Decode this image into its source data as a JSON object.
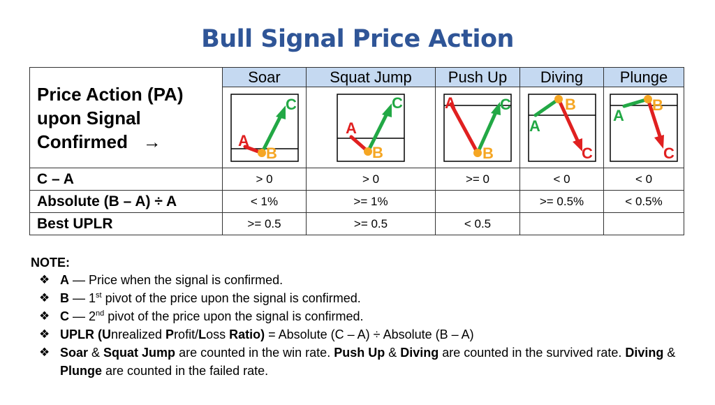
{
  "title": "Bull Signal Price Action",
  "table": {
    "corner": {
      "line1": "Price Action (PA)",
      "line2": "upon Signal",
      "line3": "Confirmed",
      "arrow": "→"
    },
    "columns": [
      "Soar",
      "Squat Jump",
      "Push Up",
      "Diving",
      "Plunge"
    ],
    "point_labels": {
      "a": "A",
      "b": "B",
      "c": "C"
    },
    "rows": [
      {
        "label": "C – A",
        "values": [
          "> 0",
          "> 0",
          ">= 0",
          "< 0",
          "< 0"
        ]
      },
      {
        "label": "Absolute (B – A) ÷ A",
        "values": [
          "< 1%",
          ">= 1%",
          "",
          ">= 0.5%",
          "< 0.5%"
        ]
      },
      {
        "label": "Best UPLR",
        "values": [
          ">= 0.5",
          ">= 0.5",
          "< 0.5",
          "",
          ""
        ]
      }
    ]
  },
  "colors": {
    "title": "#2f5597",
    "header_bg": "#c5d9f1",
    "up": "#22a845",
    "down": "#e02020",
    "pivot": "#f5a623"
  },
  "notes": {
    "heading": "NOTE:",
    "bullet": "❖",
    "n1": {
      "k": "A",
      "t": " — Price when the signal is confirmed."
    },
    "n2": {
      "k": "B",
      "t1": " — 1",
      "sup": "st",
      "t2": " pivot of the price upon the signal is confirmed."
    },
    "n3": {
      "k": "C",
      "t1": " — 2",
      "sup": "nd",
      "t2": " pivot of the price upon the signal is confirmed."
    },
    "n4": {
      "k1": "UPLR (U",
      "t1": "nrealized ",
      "k2": "P",
      "t2": "rofit/",
      "k3": "L",
      "t3": "oss ",
      "k4": "R",
      "t4": "atio)",
      "t5": " = Absolute (C – A) ÷ Absolute (B – A)"
    },
    "n5": {
      "k1": "Soar",
      "t1": " & ",
      "k2": "Squat Jump",
      "t2": " are counted in the win rate.  ",
      "k3": "Push Up",
      "t3": " & ",
      "k4": "Diving",
      "t4": " are counted in the survived rate.  ",
      "k5": "Diving",
      "t5": " & ",
      "k6": "Plunge",
      "t6": " are counted in the failed rate."
    }
  }
}
